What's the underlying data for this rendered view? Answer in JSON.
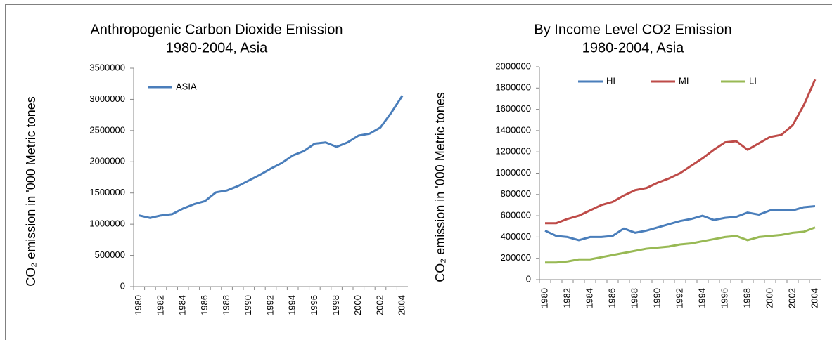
{
  "chart_data": [
    {
      "type": "line",
      "title": "Anthropogenic Carbon Dioxide Emission",
      "subtitle": "1980-2004, Asia",
      "ylabel": "CO₂ emission in '000 Metric tones",
      "categories": [
        "1980",
        null,
        "1982",
        null,
        "1984",
        null,
        "1986",
        null,
        "1988",
        null,
        "1990",
        null,
        "1992",
        null,
        "1994",
        null,
        "1996",
        null,
        "1998",
        null,
        "2000",
        null,
        "2002",
        null,
        "2004"
      ],
      "series": [
        {
          "name": "ASIA",
          "color": "#4a7ebb",
          "values": [
            1140000,
            1100000,
            1140000,
            1160000,
            1250000,
            1320000,
            1370000,
            1510000,
            1540000,
            1610000,
            1700000,
            1790000,
            1890000,
            1980000,
            2100000,
            2170000,
            2290000,
            2310000,
            2240000,
            2310000,
            2420000,
            2450000,
            2550000,
            2790000,
            3060000
          ]
        }
      ],
      "ylim": [
        0,
        3500000
      ],
      "yticks": [
        0,
        500000,
        1000000,
        1500000,
        2000000,
        2500000,
        3000000,
        3500000
      ],
      "grid": false,
      "legend": "top-left"
    },
    {
      "type": "line",
      "title": "By Income Level CO2 Emission",
      "subtitle": "1980-2004, Asia",
      "ylabel": "CO₂ emission in '000 Metric tones",
      "categories": [
        "1980",
        null,
        "1982",
        null,
        "1984",
        null,
        "1986",
        null,
        "1988",
        null,
        "1990",
        null,
        "1992",
        null,
        "1994",
        null,
        "1996",
        null,
        "1998",
        null,
        "2000",
        null,
        "2002",
        null,
        "2004"
      ],
      "series": [
        {
          "name": "HI",
          "color": "#4a7ebb",
          "values": [
            460000,
            410000,
            400000,
            370000,
            400000,
            400000,
            410000,
            480000,
            440000,
            460000,
            490000,
            520000,
            550000,
            570000,
            600000,
            560000,
            580000,
            590000,
            630000,
            610000,
            650000,
            650000,
            650000,
            680000,
            690000
          ]
        },
        {
          "name": "MI",
          "color": "#be4b48",
          "values": [
            530000,
            530000,
            570000,
            600000,
            650000,
            700000,
            730000,
            790000,
            840000,
            860000,
            910000,
            950000,
            1000000,
            1070000,
            1140000,
            1220000,
            1290000,
            1300000,
            1220000,
            1280000,
            1340000,
            1360000,
            1450000,
            1640000,
            1880000
          ]
        },
        {
          "name": "LI",
          "color": "#98b954",
          "values": [
            160000,
            160000,
            170000,
            190000,
            190000,
            210000,
            230000,
            250000,
            270000,
            290000,
            300000,
            310000,
            330000,
            340000,
            360000,
            380000,
            400000,
            410000,
            370000,
            400000,
            410000,
            420000,
            440000,
            450000,
            490000
          ]
        }
      ],
      "ylim": [
        0,
        2000000
      ],
      "yticks": [
        0,
        200000,
        400000,
        600000,
        800000,
        1000000,
        1200000,
        1400000,
        1600000,
        1800000,
        2000000
      ],
      "grid": false,
      "legend": "top"
    }
  ]
}
